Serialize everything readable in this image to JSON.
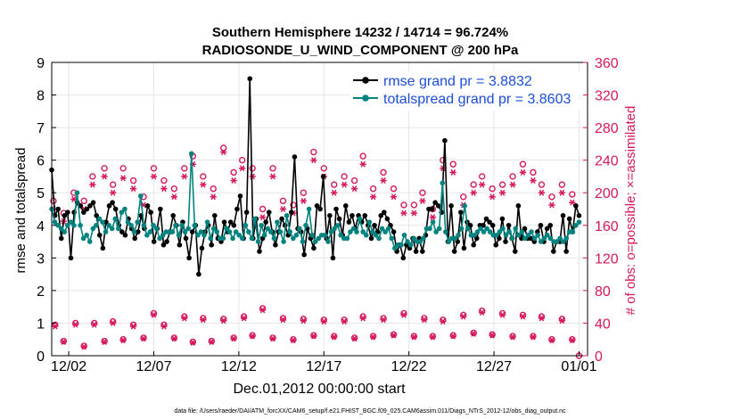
{
  "chart_data": {
    "type": "line",
    "title_line1": "Southern Hemisphere 14232 / 14714 = 96.724%",
    "title_line2": "RADIOSONDE_U_WIND_COMPONENT @ 200 hPa",
    "xlabel": "Dec.01,2012 00:00:00 start",
    "ylabel": "rmse and totalspread",
    "ylabel_right": "# of obs: o=possible; ×=assimilated",
    "xlim": [
      0,
      31.5
    ],
    "ylim": [
      0,
      9
    ],
    "ylim_right": [
      0,
      360
    ],
    "x_ticks": [
      {
        "x": 1,
        "label": "12/02"
      },
      {
        "x": 6,
        "label": "12/07"
      },
      {
        "x": 11,
        "label": "12/12"
      },
      {
        "x": 16,
        "label": "12/17"
      },
      {
        "x": 21,
        "label": "12/22"
      },
      {
        "x": 26,
        "label": "12/27"
      },
      {
        "x": 31,
        "label": "01/01"
      }
    ],
    "y_ticks": [
      0,
      1,
      2,
      3,
      4,
      5,
      6,
      7,
      8,
      9
    ],
    "y_ticks_right": [
      0,
      40,
      80,
      120,
      160,
      200,
      240,
      280,
      320,
      360
    ],
    "series": [
      {
        "name": "rmse grand pr = 3.8832",
        "color": "#000000",
        "values": [
          5.7,
          4.3,
          4.5,
          3.6,
          4.3,
          4.4,
          3.0,
          4.4,
          4.7,
          4.6,
          4.4,
          4.5,
          4.6,
          4.7,
          4.3,
          3.7,
          3.3,
          4.1,
          4.6,
          4.7,
          4.5,
          4.0,
          3.8,
          3.7,
          4.2,
          3.9,
          3.6,
          3.8,
          4.3,
          3.9,
          4.6,
          4.4,
          3.5,
          3.9,
          4.5,
          3.4,
          3.5,
          3.8,
          4.3,
          4.0,
          3.4,
          4.1,
          3.6,
          3.0,
          3.8,
          4.0,
          2.5,
          3.3,
          3.8,
          4.0,
          3.4,
          4.3,
          3.6,
          3.5,
          4.1,
          3.8,
          4.1,
          4.0,
          4.5,
          4.9,
          3.6,
          4.4,
          8.5,
          3.6,
          4.2,
          3.2,
          3.6,
          4.1,
          4.4,
          3.8,
          3.4,
          3.8,
          4.2,
          4.0,
          3.7,
          4.4,
          6.1,
          3.9,
          3.8,
          3.1,
          3.9,
          3.6,
          3.3,
          4.6,
          4.5,
          5.5,
          3.6,
          4.3,
          3.0,
          4.5,
          4.2,
          3.7,
          4.6,
          4.1,
          4.3,
          3.9,
          4.3,
          4.1,
          4.3,
          4.0,
          3.6,
          4.0,
          3.8,
          4.3,
          4.4,
          4.2,
          4.0,
          3.8,
          3.2,
          3.4,
          3.0,
          3.4,
          3.3,
          3.6,
          3.2,
          3.6,
          3.2,
          3.7,
          4.5,
          4.5,
          4.7,
          4.6,
          4.4,
          6.6,
          3.5,
          4.6,
          3.2,
          3.5,
          4.4,
          3.3,
          4.1,
          4.0,
          3.4,
          3.6,
          4.0,
          4.0,
          4.2,
          4.1,
          4.0,
          3.4,
          3.6,
          4.2,
          3.5,
          4.0,
          3.6,
          3.2,
          4.6,
          3.6,
          3.9,
          3.6,
          3.6,
          3.5,
          3.8,
          4.0,
          3.5,
          3.9,
          4.0,
          3.2,
          3.5,
          3.5,
          4.3,
          3.2,
          4.2,
          3.8,
          4.6,
          4.3
        ]
      },
      {
        "name": "totalspread grand pr = 3.8603",
        "color": "#00837f",
        "values": [
          4.5,
          4.1,
          4.0,
          3.9,
          3.8,
          4.0,
          4.1,
          4.0,
          5.0,
          4.0,
          3.6,
          3.7,
          3.5,
          3.9,
          4.0,
          4.2,
          4.1,
          3.8,
          4.0,
          3.9,
          4.2,
          3.9,
          4.4,
          4.5,
          4.1,
          4.0,
          3.8,
          4.1,
          4.9,
          4.0,
          3.7,
          3.8,
          4.0,
          3.9,
          3.6,
          3.7,
          3.8,
          3.8,
          3.8,
          4.0,
          3.7,
          4.0,
          3.8,
          3.9,
          6.2,
          4.0,
          3.7,
          3.8,
          3.7,
          4.1,
          3.6,
          3.9,
          3.8,
          3.6,
          3.6,
          3.9,
          3.8,
          3.6,
          3.8,
          3.7,
          3.6,
          4.0,
          3.8,
          3.6,
          4.2,
          3.5,
          4.0,
          3.7,
          3.9,
          3.8,
          3.6,
          4.1,
          3.8,
          3.5,
          4.3,
          3.8,
          3.6,
          3.7,
          3.9,
          3.5,
          4.0,
          4.5,
          3.7,
          3.5,
          3.6,
          3.7,
          3.7,
          3.5,
          3.8,
          3.9,
          4.0,
          3.7,
          3.6,
          3.6,
          3.8,
          3.9,
          3.8,
          4.2,
          3.8,
          3.7,
          4.1,
          3.8,
          3.7,
          3.6,
          3.9,
          3.8,
          3.9,
          3.6,
          3.3,
          3.4,
          3.4,
          3.7,
          3.5,
          3.4,
          3.6,
          3.5,
          3.5,
          3.6,
          3.9,
          3.9,
          4.1,
          3.8,
          3.9,
          5.3,
          3.8,
          3.5,
          3.6,
          3.6,
          3.7,
          3.9,
          4.6,
          3.9,
          3.7,
          3.7,
          3.8,
          3.9,
          3.8,
          3.9,
          3.8,
          3.7,
          3.7,
          3.8,
          3.9,
          3.7,
          3.8,
          3.6,
          3.9,
          3.7,
          3.8,
          3.6,
          3.7,
          3.8,
          3.6,
          3.7,
          3.5,
          3.6,
          3.7,
          3.6,
          3.5,
          3.5,
          3.6,
          3.5,
          3.6,
          3.8,
          3.8,
          4.0,
          4.1
        ]
      }
    ],
    "obs_possible_upper": [
      {
        "x": 0.1,
        "y": 190
      },
      {
        "x": 0.7,
        "y": 175
      },
      {
        "x": 1.3,
        "y": 200
      },
      {
        "x": 1.9,
        "y": 190
      },
      {
        "x": 2.4,
        "y": 220
      },
      {
        "x": 3.1,
        "y": 230
      },
      {
        "x": 3.6,
        "y": 210
      },
      {
        "x": 4.2,
        "y": 230
      },
      {
        "x": 4.8,
        "y": 215
      },
      {
        "x": 5.4,
        "y": 195
      },
      {
        "x": 6.0,
        "y": 230
      },
      {
        "x": 6.6,
        "y": 215
      },
      {
        "x": 7.2,
        "y": 205
      },
      {
        "x": 7.8,
        "y": 230
      },
      {
        "x": 8.3,
        "y": 245
      },
      {
        "x": 8.9,
        "y": 220
      },
      {
        "x": 9.5,
        "y": 205
      },
      {
        "x": 10.1,
        "y": 255
      },
      {
        "x": 10.7,
        "y": 225
      },
      {
        "x": 11.2,
        "y": 240
      },
      {
        "x": 11.8,
        "y": 230
      },
      {
        "x": 12.4,
        "y": 180
      },
      {
        "x": 13.0,
        "y": 230
      },
      {
        "x": 13.6,
        "y": 190
      },
      {
        "x": 14.2,
        "y": 185
      },
      {
        "x": 14.8,
        "y": 200
      },
      {
        "x": 15.4,
        "y": 250
      },
      {
        "x": 16.0,
        "y": 230
      },
      {
        "x": 16.6,
        "y": 210
      },
      {
        "x": 17.2,
        "y": 220
      },
      {
        "x": 17.8,
        "y": 215
      },
      {
        "x": 18.3,
        "y": 245
      },
      {
        "x": 18.9,
        "y": 205
      },
      {
        "x": 19.5,
        "y": 225
      },
      {
        "x": 20.1,
        "y": 205
      },
      {
        "x": 20.7,
        "y": 185
      },
      {
        "x": 21.3,
        "y": 185
      },
      {
        "x": 21.8,
        "y": 200
      },
      {
        "x": 22.4,
        "y": 180
      },
      {
        "x": 23.0,
        "y": 240
      },
      {
        "x": 23.6,
        "y": 235
      },
      {
        "x": 24.2,
        "y": 195
      },
      {
        "x": 24.8,
        "y": 210
      },
      {
        "x": 25.3,
        "y": 220
      },
      {
        "x": 25.9,
        "y": 205
      },
      {
        "x": 26.5,
        "y": 210
      },
      {
        "x": 27.1,
        "y": 220
      },
      {
        "x": 27.7,
        "y": 235
      },
      {
        "x": 28.3,
        "y": 225
      },
      {
        "x": 28.8,
        "y": 210
      },
      {
        "x": 29.4,
        "y": 195
      },
      {
        "x": 30.0,
        "y": 210
      },
      {
        "x": 30.6,
        "y": 198
      }
    ],
    "obs_assimilated_upper": [
      {
        "x": 0.1,
        "y": 180
      },
      {
        "x": 0.7,
        "y": 165
      },
      {
        "x": 1.3,
        "y": 192
      },
      {
        "x": 1.9,
        "y": 180
      },
      {
        "x": 2.4,
        "y": 210
      },
      {
        "x": 3.1,
        "y": 220
      },
      {
        "x": 3.6,
        "y": 200
      },
      {
        "x": 4.2,
        "y": 218
      },
      {
        "x": 4.8,
        "y": 205
      },
      {
        "x": 5.4,
        "y": 185
      },
      {
        "x": 6.0,
        "y": 220
      },
      {
        "x": 6.6,
        "y": 205
      },
      {
        "x": 7.2,
        "y": 195
      },
      {
        "x": 7.8,
        "y": 220
      },
      {
        "x": 8.3,
        "y": 235
      },
      {
        "x": 8.9,
        "y": 210
      },
      {
        "x": 9.5,
        "y": 195
      },
      {
        "x": 10.1,
        "y": 250
      },
      {
        "x": 10.7,
        "y": 215
      },
      {
        "x": 11.2,
        "y": 230
      },
      {
        "x": 11.8,
        "y": 220
      },
      {
        "x": 12.4,
        "y": 170
      },
      {
        "x": 13.0,
        "y": 220
      },
      {
        "x": 13.6,
        "y": 180
      },
      {
        "x": 14.2,
        "y": 175
      },
      {
        "x": 14.8,
        "y": 190
      },
      {
        "x": 15.4,
        "y": 240
      },
      {
        "x": 16.0,
        "y": 220
      },
      {
        "x": 16.6,
        "y": 200
      },
      {
        "x": 17.2,
        "y": 210
      },
      {
        "x": 17.8,
        "y": 205
      },
      {
        "x": 18.3,
        "y": 235
      },
      {
        "x": 18.9,
        "y": 195
      },
      {
        "x": 19.5,
        "y": 215
      },
      {
        "x": 20.1,
        "y": 195
      },
      {
        "x": 20.7,
        "y": 175
      },
      {
        "x": 21.3,
        "y": 175
      },
      {
        "x": 21.8,
        "y": 190
      },
      {
        "x": 22.4,
        "y": 170
      },
      {
        "x": 23.0,
        "y": 230
      },
      {
        "x": 23.6,
        "y": 225
      },
      {
        "x": 24.2,
        "y": 185
      },
      {
        "x": 24.8,
        "y": 200
      },
      {
        "x": 25.3,
        "y": 210
      },
      {
        "x": 25.9,
        "y": 195
      },
      {
        "x": 26.5,
        "y": 200
      },
      {
        "x": 27.1,
        "y": 210
      },
      {
        "x": 27.7,
        "y": 225
      },
      {
        "x": 28.3,
        "y": 215
      },
      {
        "x": 28.8,
        "y": 200
      },
      {
        "x": 29.4,
        "y": 185
      },
      {
        "x": 30.0,
        "y": 200
      },
      {
        "x": 30.6,
        "y": 188
      }
    ],
    "obs_possible_lower": [
      {
        "x": 0.2,
        "y": 38
      },
      {
        "x": 0.7,
        "y": 18
      },
      {
        "x": 1.4,
        "y": 40
      },
      {
        "x": 1.9,
        "y": 12
      },
      {
        "x": 2.5,
        "y": 40
      },
      {
        "x": 3.1,
        "y": 18
      },
      {
        "x": 3.6,
        "y": 42
      },
      {
        "x": 4.2,
        "y": 20
      },
      {
        "x": 4.8,
        "y": 38
      },
      {
        "x": 5.4,
        "y": 22
      },
      {
        "x": 6.0,
        "y": 52
      },
      {
        "x": 6.6,
        "y": 38
      },
      {
        "x": 7.2,
        "y": 22
      },
      {
        "x": 7.8,
        "y": 48
      },
      {
        "x": 8.3,
        "y": 17
      },
      {
        "x": 8.9,
        "y": 46
      },
      {
        "x": 9.4,
        "y": 18
      },
      {
        "x": 10.1,
        "y": 45
      },
      {
        "x": 10.7,
        "y": 22
      },
      {
        "x": 11.3,
        "y": 48
      },
      {
        "x": 11.8,
        "y": 25
      },
      {
        "x": 12.4,
        "y": 58
      },
      {
        "x": 13.0,
        "y": 22
      },
      {
        "x": 13.6,
        "y": 46
      },
      {
        "x": 14.2,
        "y": 20
      },
      {
        "x": 14.8,
        "y": 45
      },
      {
        "x": 15.4,
        "y": 25
      },
      {
        "x": 16.0,
        "y": 44
      },
      {
        "x": 16.6,
        "y": 24
      },
      {
        "x": 17.2,
        "y": 44
      },
      {
        "x": 17.8,
        "y": 22
      },
      {
        "x": 18.3,
        "y": 48
      },
      {
        "x": 18.9,
        "y": 24
      },
      {
        "x": 19.5,
        "y": 46
      },
      {
        "x": 20.1,
        "y": 26
      },
      {
        "x": 20.7,
        "y": 52
      },
      {
        "x": 21.3,
        "y": 24
      },
      {
        "x": 21.9,
        "y": 46
      },
      {
        "x": 22.4,
        "y": 24
      },
      {
        "x": 23.0,
        "y": 44
      },
      {
        "x": 23.6,
        "y": 25
      },
      {
        "x": 24.2,
        "y": 50
      },
      {
        "x": 24.8,
        "y": 28
      },
      {
        "x": 25.3,
        "y": 55
      },
      {
        "x": 25.9,
        "y": 26
      },
      {
        "x": 26.5,
        "y": 52
      },
      {
        "x": 27.1,
        "y": 24
      },
      {
        "x": 27.7,
        "y": 50
      },
      {
        "x": 28.3,
        "y": 24
      },
      {
        "x": 28.8,
        "y": 48
      },
      {
        "x": 29.4,
        "y": 20
      },
      {
        "x": 30.0,
        "y": 45
      },
      {
        "x": 30.6,
        "y": 20
      },
      {
        "x": 31.0,
        "y": 0
      }
    ],
    "obs_assimilated_lower": [
      {
        "x": 0.2,
        "y": 36
      },
      {
        "x": 0.7,
        "y": 17
      },
      {
        "x": 1.4,
        "y": 38
      },
      {
        "x": 1.9,
        "y": 11
      },
      {
        "x": 2.5,
        "y": 38
      },
      {
        "x": 3.1,
        "y": 17
      },
      {
        "x": 3.6,
        "y": 40
      },
      {
        "x": 4.2,
        "y": 19
      },
      {
        "x": 4.8,
        "y": 36
      },
      {
        "x": 5.4,
        "y": 21
      },
      {
        "x": 6.0,
        "y": 50
      },
      {
        "x": 6.6,
        "y": 36
      },
      {
        "x": 7.2,
        "y": 21
      },
      {
        "x": 7.8,
        "y": 46
      },
      {
        "x": 8.3,
        "y": 16
      },
      {
        "x": 8.9,
        "y": 44
      },
      {
        "x": 9.4,
        "y": 17
      },
      {
        "x": 10.1,
        "y": 43
      },
      {
        "x": 10.7,
        "y": 21
      },
      {
        "x": 11.3,
        "y": 46
      },
      {
        "x": 11.8,
        "y": 24
      },
      {
        "x": 12.4,
        "y": 56
      },
      {
        "x": 13.0,
        "y": 21
      },
      {
        "x": 13.6,
        "y": 44
      },
      {
        "x": 14.2,
        "y": 19
      },
      {
        "x": 14.8,
        "y": 43
      },
      {
        "x": 15.4,
        "y": 24
      },
      {
        "x": 16.0,
        "y": 42
      },
      {
        "x": 16.6,
        "y": 23
      },
      {
        "x": 17.2,
        "y": 42
      },
      {
        "x": 17.8,
        "y": 21
      },
      {
        "x": 18.3,
        "y": 46
      },
      {
        "x": 18.9,
        "y": 23
      },
      {
        "x": 19.5,
        "y": 44
      },
      {
        "x": 20.1,
        "y": 25
      },
      {
        "x": 20.7,
        "y": 50
      },
      {
        "x": 21.3,
        "y": 23
      },
      {
        "x": 21.9,
        "y": 44
      },
      {
        "x": 22.4,
        "y": 23
      },
      {
        "x": 23.0,
        "y": 42
      },
      {
        "x": 23.6,
        "y": 24
      },
      {
        "x": 24.2,
        "y": 48
      },
      {
        "x": 24.8,
        "y": 27
      },
      {
        "x": 25.3,
        "y": 53
      },
      {
        "x": 25.9,
        "y": 25
      },
      {
        "x": 26.5,
        "y": 50
      },
      {
        "x": 27.1,
        "y": 23
      },
      {
        "x": 27.7,
        "y": 48
      },
      {
        "x": 28.3,
        "y": 23
      },
      {
        "x": 28.8,
        "y": 46
      },
      {
        "x": 29.4,
        "y": 19
      },
      {
        "x": 30.0,
        "y": 43
      },
      {
        "x": 30.6,
        "y": 19
      }
    ],
    "legend_position": "top-right",
    "grid": true
  },
  "footer_text": "data file: /Users/raeder/DAI/ATM_forcXX/CAM6_setup/f.e21.FHIST_BGC.f09_025.CAM6assim.011/Diags_NTrS_2012-12/obs_diag_output.nc",
  "colors": {
    "rmse": "#000000",
    "spread": "#00837f",
    "obs": "#d6185e",
    "legend_text": "#1c4ed8",
    "grid": "#e6e6e6"
  }
}
